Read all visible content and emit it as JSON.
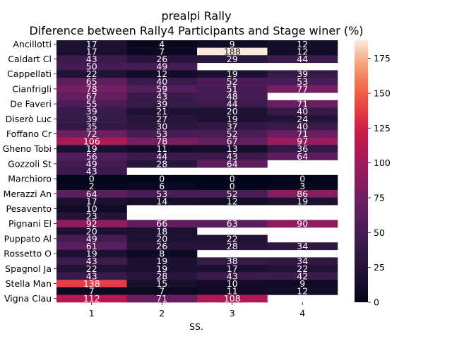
{
  "chart_data": {
    "type": "heatmap",
    "title": "prealpi Rally",
    "subtitle": "Diference between Rally4 Participants and Stage winer (%)",
    "xlabel": "SS.",
    "ylabel": "",
    "x_ticks": [
      "1",
      "2",
      "3",
      "4"
    ],
    "y_ticks": [
      "Ancillotti",
      "Caldart Cl",
      "Cappellati",
      "Cianfrigli",
      "De Faveri ",
      "Diserò Luc",
      "Foffano Cr",
      "Gheno Tobi",
      "Gozzoli St",
      "Marchioro ",
      "Merazzi An",
      "Pesavento ",
      "Pignani El",
      "Puppato Al",
      "Rossetto O",
      "Spagnol Ja",
      "Stella Man",
      "Vigna Clau"
    ],
    "y_tick_every": 2,
    "colorbar": {
      "min": 0,
      "max": 188,
      "ticks": [
        0,
        25,
        50,
        75,
        100,
        125,
        150,
        175
      ],
      "colormap": "rocket"
    },
    "rows": [
      [
        17,
        4,
        9,
        12
      ],
      [
        17,
        7,
        188,
        12
      ],
      [
        43,
        26,
        29,
        44
      ],
      [
        50,
        49,
        null,
        null
      ],
      [
        22,
        12,
        19,
        39
      ],
      [
        65,
        40,
        52,
        53
      ],
      [
        78,
        59,
        51,
        77
      ],
      [
        67,
        43,
        48,
        null
      ],
      [
        55,
        39,
        44,
        71
      ],
      [
        39,
        21,
        20,
        40
      ],
      [
        39,
        27,
        19,
        24
      ],
      [
        35,
        30,
        37,
        40
      ],
      [
        72,
        53,
        52,
        71
      ],
      [
        106,
        78,
        67,
        97
      ],
      [
        19,
        11,
        13,
        36
      ],
      [
        56,
        44,
        43,
        64
      ],
      [
        49,
        28,
        64,
        null
      ],
      [
        43,
        null,
        null,
        null
      ],
      [
        0,
        0,
        0,
        0
      ],
      [
        2,
        6,
        0,
        3
      ],
      [
        64,
        53,
        52,
        86
      ],
      [
        17,
        14,
        12,
        19
      ],
      [
        10,
        null,
        null,
        null
      ],
      [
        23,
        null,
        null,
        null
      ],
      [
        92,
        66,
        63,
        90
      ],
      [
        20,
        18,
        null,
        null
      ],
      [
        49,
        20,
        22,
        null
      ],
      [
        61,
        26,
        28,
        34
      ],
      [
        19,
        8,
        null,
        null
      ],
      [
        43,
        19,
        38,
        34
      ],
      [
        22,
        19,
        17,
        22
      ],
      [
        43,
        28,
        43,
        42
      ],
      [
        138,
        15,
        10,
        9
      ],
      [
        7,
        7,
        11,
        12
      ],
      [
        112,
        71,
        108,
        null
      ]
    ]
  }
}
